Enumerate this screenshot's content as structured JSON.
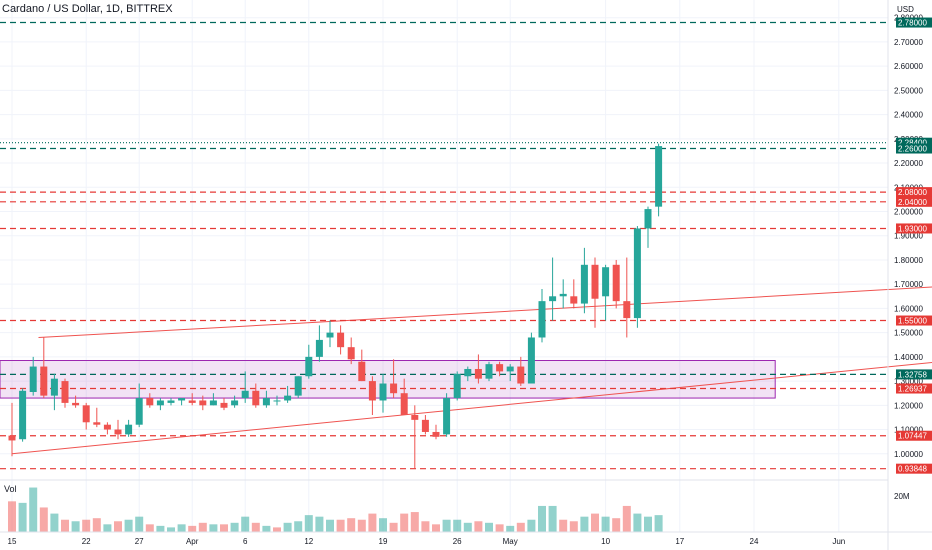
{
  "header": {
    "title": "Cardano / US Dollar, 1D, BITTREX"
  },
  "axis": {
    "currency": "USD",
    "volume_label": "Vol",
    "volume_tick": "20M"
  },
  "colors": {
    "up": "#26a69a",
    "down": "#ef5350",
    "up_badge": "#00695c",
    "down_badge": "#e53935",
    "zone": "#9c27b0",
    "trend": "#ef5350"
  },
  "chart_data": {
    "type": "candlestick",
    "title": "Cardano / US Dollar, 1D, BITTREX",
    "ylim": [
      0.9,
      2.84
    ],
    "y_ticks": [
      1.0,
      1.1,
      1.2,
      1.3,
      1.4,
      1.5,
      1.6,
      1.7,
      1.8,
      1.9,
      2.0,
      2.1,
      2.2,
      2.3,
      2.4,
      2.5,
      2.6,
      2.7,
      2.8
    ],
    "y_tick_labels": [
      "1.00000",
      "1.10000",
      "1.20000",
      "1.30000",
      "1.40000",
      "1.50000",
      "1.60000",
      "1.70000",
      "1.80000",
      "1.90000",
      "2.00000",
      "2.10000",
      "2.20000",
      "2.30000",
      "2.40000",
      "2.50000",
      "2.60000",
      "2.70000",
      "2.80000"
    ],
    "x_tick_labels": [
      {
        "i": 0,
        "label": "15"
      },
      {
        "i": 7,
        "label": "22"
      },
      {
        "i": 12,
        "label": "27"
      },
      {
        "i": 17,
        "label": "Apr"
      },
      {
        "i": 22,
        "label": "6"
      },
      {
        "i": 28,
        "label": "12"
      },
      {
        "i": 35,
        "label": "19"
      },
      {
        "i": 42,
        "label": "26"
      },
      {
        "i": 47,
        "label": "May"
      },
      {
        "i": 56,
        "label": "10"
      },
      {
        "i": 63,
        "label": "17"
      },
      {
        "i": 70,
        "label": "24"
      },
      {
        "i": 78,
        "label": "Jun"
      }
    ],
    "candles": [
      {
        "o": 1.075,
        "h": 1.21,
        "l": 0.99,
        "c": 1.055
      },
      {
        "o": 1.06,
        "h": 1.27,
        "l": 1.05,
        "c": 1.26
      },
      {
        "o": 1.255,
        "h": 1.4,
        "l": 1.24,
        "c": 1.36
      },
      {
        "o": 1.36,
        "h": 1.48,
        "l": 1.23,
        "c": 1.24
      },
      {
        "o": 1.24,
        "h": 1.33,
        "l": 1.18,
        "c": 1.31
      },
      {
        "o": 1.3,
        "h": 1.31,
        "l": 1.19,
        "c": 1.21
      },
      {
        "o": 1.21,
        "h": 1.24,
        "l": 1.19,
        "c": 1.2
      },
      {
        "o": 1.2,
        "h": 1.21,
        "l": 1.1,
        "c": 1.13
      },
      {
        "o": 1.13,
        "h": 1.19,
        "l": 1.11,
        "c": 1.12
      },
      {
        "o": 1.12,
        "h": 1.13,
        "l": 1.08,
        "c": 1.1
      },
      {
        "o": 1.1,
        "h": 1.14,
        "l": 1.06,
        "c": 1.08
      },
      {
        "o": 1.08,
        "h": 1.14,
        "l": 1.07,
        "c": 1.12
      },
      {
        "o": 1.12,
        "h": 1.29,
        "l": 1.11,
        "c": 1.23
      },
      {
        "o": 1.23,
        "h": 1.25,
        "l": 1.19,
        "c": 1.2
      },
      {
        "o": 1.2,
        "h": 1.23,
        "l": 1.18,
        "c": 1.22
      },
      {
        "o": 1.21,
        "h": 1.23,
        "l": 1.2,
        "c": 1.22
      },
      {
        "o": 1.22,
        "h": 1.23,
        "l": 1.2,
        "c": 1.23
      },
      {
        "o": 1.22,
        "h": 1.25,
        "l": 1.2,
        "c": 1.21
      },
      {
        "o": 1.22,
        "h": 1.24,
        "l": 1.18,
        "c": 1.2
      },
      {
        "o": 1.2,
        "h": 1.25,
        "l": 1.2,
        "c": 1.22
      },
      {
        "o": 1.21,
        "h": 1.23,
        "l": 1.18,
        "c": 1.19
      },
      {
        "o": 1.2,
        "h": 1.24,
        "l": 1.19,
        "c": 1.22
      },
      {
        "o": 1.23,
        "h": 1.34,
        "l": 1.21,
        "c": 1.26
      },
      {
        "o": 1.26,
        "h": 1.29,
        "l": 1.19,
        "c": 1.2
      },
      {
        "o": 1.2,
        "h": 1.26,
        "l": 1.19,
        "c": 1.23
      },
      {
        "o": 1.22,
        "h": 1.24,
        "l": 1.2,
        "c": 1.22
      },
      {
        "o": 1.22,
        "h": 1.28,
        "l": 1.21,
        "c": 1.24
      },
      {
        "o": 1.24,
        "h": 1.32,
        "l": 1.23,
        "c": 1.32
      },
      {
        "o": 1.32,
        "h": 1.45,
        "l": 1.31,
        "c": 1.4
      },
      {
        "o": 1.4,
        "h": 1.53,
        "l": 1.38,
        "c": 1.47
      },
      {
        "o": 1.48,
        "h": 1.55,
        "l": 1.44,
        "c": 1.5
      },
      {
        "o": 1.5,
        "h": 1.53,
        "l": 1.41,
        "c": 1.44
      },
      {
        "o": 1.44,
        "h": 1.48,
        "l": 1.37,
        "c": 1.39
      },
      {
        "o": 1.38,
        "h": 1.43,
        "l": 1.3,
        "c": 1.3
      },
      {
        "o": 1.3,
        "h": 1.32,
        "l": 1.16,
        "c": 1.22
      },
      {
        "o": 1.22,
        "h": 1.33,
        "l": 1.17,
        "c": 1.29
      },
      {
        "o": 1.29,
        "h": 1.39,
        "l": 1.23,
        "c": 1.25
      },
      {
        "o": 1.25,
        "h": 1.31,
        "l": 1.16,
        "c": 1.16
      },
      {
        "o": 1.16,
        "h": 1.2,
        "l": 0.94,
        "c": 1.14
      },
      {
        "o": 1.14,
        "h": 1.16,
        "l": 1.08,
        "c": 1.09
      },
      {
        "o": 1.09,
        "h": 1.12,
        "l": 1.06,
        "c": 1.07
      },
      {
        "o": 1.08,
        "h": 1.25,
        "l": 1.07,
        "c": 1.23
      },
      {
        "o": 1.23,
        "h": 1.34,
        "l": 1.22,
        "c": 1.33
      },
      {
        "o": 1.32,
        "h": 1.36,
        "l": 1.3,
        "c": 1.35
      },
      {
        "o": 1.35,
        "h": 1.41,
        "l": 1.29,
        "c": 1.31
      },
      {
        "o": 1.31,
        "h": 1.38,
        "l": 1.3,
        "c": 1.37
      },
      {
        "o": 1.37,
        "h": 1.38,
        "l": 1.32,
        "c": 1.34
      },
      {
        "o": 1.34,
        "h": 1.37,
        "l": 1.3,
        "c": 1.36
      },
      {
        "o": 1.36,
        "h": 1.4,
        "l": 1.28,
        "c": 1.29
      },
      {
        "o": 1.29,
        "h": 1.5,
        "l": 1.29,
        "c": 1.48
      },
      {
        "o": 1.48,
        "h": 1.68,
        "l": 1.46,
        "c": 1.63
      },
      {
        "o": 1.63,
        "h": 1.81,
        "l": 1.55,
        "c": 1.65
      },
      {
        "o": 1.65,
        "h": 1.72,
        "l": 1.6,
        "c": 1.66
      },
      {
        "o": 1.65,
        "h": 1.72,
        "l": 1.6,
        "c": 1.62
      },
      {
        "o": 1.62,
        "h": 1.85,
        "l": 1.58,
        "c": 1.78
      },
      {
        "o": 1.78,
        "h": 1.81,
        "l": 1.52,
        "c": 1.64
      },
      {
        "o": 1.65,
        "h": 1.78,
        "l": 1.55,
        "c": 1.77
      },
      {
        "o": 1.78,
        "h": 1.8,
        "l": 1.6,
        "c": 1.63
      },
      {
        "o": 1.63,
        "h": 1.81,
        "l": 1.48,
        "c": 1.56
      },
      {
        "o": 1.56,
        "h": 1.94,
        "l": 1.52,
        "c": 1.93
      },
      {
        "o": 1.93,
        "h": 2.02,
        "l": 1.85,
        "c": 2.01
      },
      {
        "o": 2.02,
        "h": 2.28,
        "l": 1.98,
        "c": 2.27
      }
    ],
    "volume": [
      {
        "v": 20,
        "up": false
      },
      {
        "v": 19,
        "up": true
      },
      {
        "v": 29,
        "up": true
      },
      {
        "v": 16,
        "up": false
      },
      {
        "v": 12,
        "up": true
      },
      {
        "v": 8,
        "up": false
      },
      {
        "v": 7,
        "up": true
      },
      {
        "v": 8,
        "up": false
      },
      {
        "v": 9,
        "up": false
      },
      {
        "v": 5,
        "up": true
      },
      {
        "v": 7,
        "up": false
      },
      {
        "v": 8,
        "up": true
      },
      {
        "v": 10,
        "up": true
      },
      {
        "v": 5,
        "up": false
      },
      {
        "v": 4,
        "up": true
      },
      {
        "v": 3,
        "up": true
      },
      {
        "v": 5,
        "up": true
      },
      {
        "v": 4,
        "up": false
      },
      {
        "v": 6,
        "up": false
      },
      {
        "v": 5,
        "up": true
      },
      {
        "v": 5,
        "up": false
      },
      {
        "v": 6,
        "up": true
      },
      {
        "v": 10,
        "up": true
      },
      {
        "v": 6,
        "up": false
      },
      {
        "v": 4,
        "up": true
      },
      {
        "v": 3,
        "up": false
      },
      {
        "v": 6,
        "up": true
      },
      {
        "v": 7,
        "up": true
      },
      {
        "v": 11,
        "up": true
      },
      {
        "v": 10,
        "up": true
      },
      {
        "v": 8,
        "up": true
      },
      {
        "v": 8,
        "up": false
      },
      {
        "v": 9,
        "up": false
      },
      {
        "v": 8,
        "up": false
      },
      {
        "v": 12,
        "up": false
      },
      {
        "v": 9,
        "up": true
      },
      {
        "v": 6,
        "up": false
      },
      {
        "v": 12,
        "up": false
      },
      {
        "v": 13,
        "up": false
      },
      {
        "v": 7,
        "up": false
      },
      {
        "v": 5,
        "up": false
      },
      {
        "v": 8,
        "up": true
      },
      {
        "v": 8,
        "up": true
      },
      {
        "v": 6,
        "up": true
      },
      {
        "v": 7,
        "up": false
      },
      {
        "v": 6,
        "up": true
      },
      {
        "v": 5,
        "up": false
      },
      {
        "v": 4,
        "up": true
      },
      {
        "v": 6,
        "up": false
      },
      {
        "v": 8,
        "up": true
      },
      {
        "v": 17,
        "up": true
      },
      {
        "v": 17,
        "up": true
      },
      {
        "v": 8,
        "up": false
      },
      {
        "v": 7,
        "up": false
      },
      {
        "v": 10,
        "up": true
      },
      {
        "v": 12,
        "up": false
      },
      {
        "v": 10,
        "up": true
      },
      {
        "v": 9,
        "up": false
      },
      {
        "v": 17,
        "up": false
      },
      {
        "v": 12,
        "up": true
      },
      {
        "v": 10,
        "up": true
      },
      {
        "v": 11,
        "up": true
      }
    ],
    "horizontal_levels": [
      {
        "value": 2.78,
        "label": "2.78000",
        "color": "up",
        "dashed": true
      },
      {
        "value": 2.284,
        "label": "2.28400",
        "color": "up",
        "dashed": false
      },
      {
        "value": 2.26,
        "label": "2.26000",
        "color": "up",
        "dashed": true
      },
      {
        "value": 2.08,
        "label": "2.08000",
        "color": "down",
        "dashed": true
      },
      {
        "value": 2.04,
        "label": "2.04000",
        "color": "down",
        "dashed": true
      },
      {
        "value": 1.93,
        "label": "1.93000",
        "color": "down",
        "dashed": true
      },
      {
        "value": 1.55,
        "label": "1.55000",
        "color": "down",
        "dashed": true
      },
      {
        "value": 1.32758,
        "label": "1.32758",
        "color": "up",
        "dashed": true
      },
      {
        "value": 1.26937,
        "label": "1.26937",
        "color": "down",
        "dashed": true
      },
      {
        "value": 1.07447,
        "label": "1.07447",
        "color": "down",
        "dashed": true
      },
      {
        "value": 0.93848,
        "label": "0.93848",
        "color": "down",
        "dashed": true
      }
    ],
    "zone": {
      "from_index": 0,
      "to_index": 72,
      "low": 1.23,
      "high": 1.385
    },
    "trendlines": [
      {
        "x1": 0,
        "y1": 1.0,
        "x2": 87.5,
        "y2": 1.38
      },
      {
        "x1": 2.5,
        "y1": 1.48,
        "x2": 27.5,
        "y2": 1.54
      },
      {
        "x1": 27.5,
        "y1": 1.54,
        "x2": 87.5,
        "y2": 1.69
      }
    ]
  }
}
